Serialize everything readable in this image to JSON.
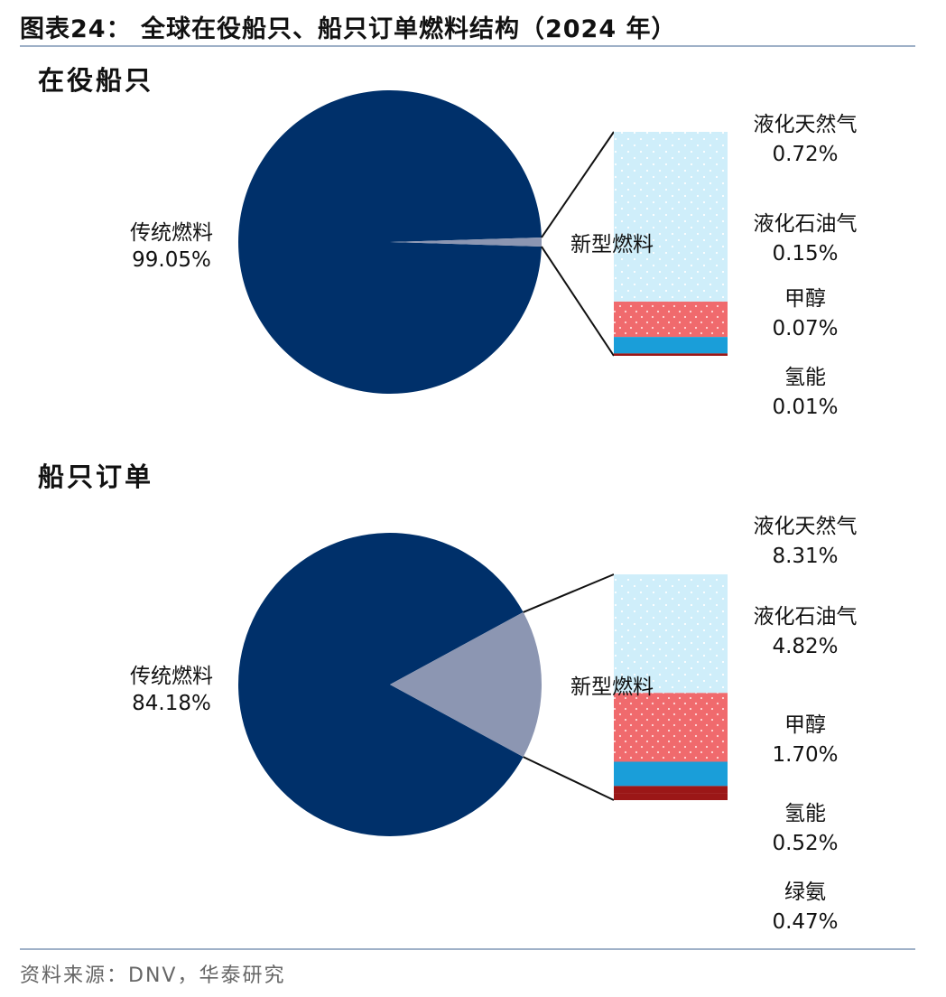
{
  "title": "图表24：  全球在役船只、船只订单燃料结构（2024 年）",
  "source": "资料来源：DNV，华泰研究",
  "colors": {
    "traditional": "#00306a",
    "new_slice": "#8c96b2",
    "lng": "#cfeefa",
    "lpg_methanol": "#f06a6d",
    "methanol_blue": "#1a9ed9",
    "hydrogen": "#9b1717",
    "ammonia": "#9b1717"
  },
  "chart_data": [
    {
      "type": "pie",
      "title": "在役船只",
      "slices": [
        {
          "label": "传统燃料",
          "value": 99.05
        },
        {
          "label": "新型燃料",
          "value": 0.95
        }
      ],
      "breakdown_label": "新型燃料",
      "breakdown": [
        {
          "label": "液化天然气",
          "value": 0.72,
          "display": "0.72%"
        },
        {
          "label": "液化石油气",
          "value": 0.15,
          "display": "0.15%"
        },
        {
          "label": "甲醇",
          "value": 0.07,
          "display": "0.07%"
        },
        {
          "label": "氢能",
          "value": 0.01,
          "display": "0.01%"
        }
      ],
      "traditional_display": "99.05%"
    },
    {
      "type": "pie",
      "title": "船只订单",
      "slices": [
        {
          "label": "传统燃料",
          "value": 84.18
        },
        {
          "label": "新型燃料",
          "value": 15.82
        }
      ],
      "breakdown_label": "新型燃料",
      "breakdown": [
        {
          "label": "液化天然气",
          "value": 8.31,
          "display": "8.31%"
        },
        {
          "label": "液化石油气",
          "value": 4.82,
          "display": "4.82%"
        },
        {
          "label": "甲醇",
          "value": 1.7,
          "display": "1.70%"
        },
        {
          "label": "氢能",
          "value": 0.52,
          "display": "0.52%"
        },
        {
          "label": "绿氨",
          "value": 0.47,
          "display": "0.47%"
        }
      ],
      "traditional_display": "84.18%"
    }
  ]
}
